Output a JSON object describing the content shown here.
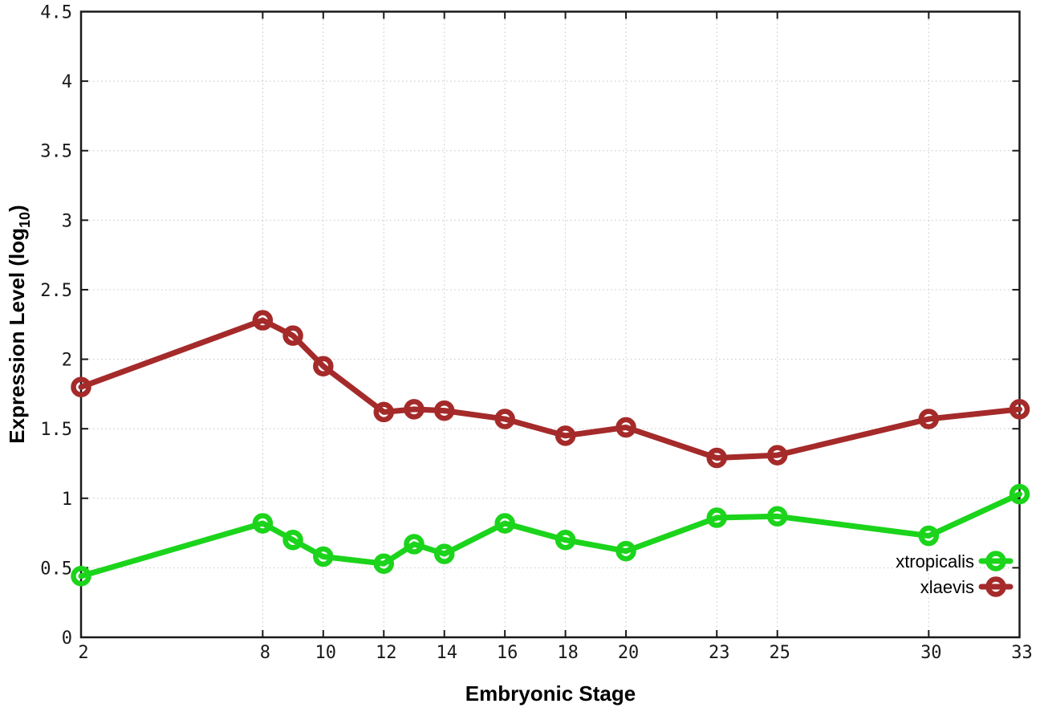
{
  "chart_data": {
    "type": "line",
    "title": "",
    "xlabel": "Embryonic Stage",
    "ylabel": "Expression Level (log10)",
    "ylabel_parts": {
      "main": "Expression Level (log",
      "sub": "10",
      "end": ")"
    },
    "xlim": [
      2,
      33
    ],
    "ylim": [
      0,
      4.5
    ],
    "grid": true,
    "legend_position": "inside-right-bottom",
    "x_ticks": [
      2,
      8,
      10,
      12,
      14,
      16,
      18,
      20,
      23,
      25,
      30,
      33
    ],
    "y_ticks": [
      "0",
      "0.5",
      "1",
      "1.5",
      "2",
      "2.5",
      "3",
      "3.5",
      "4",
      "4.5"
    ],
    "x": [
      2,
      8,
      9,
      10,
      12,
      13,
      14,
      16,
      18,
      20,
      23,
      25,
      30,
      33
    ],
    "series": [
      {
        "name": "xtropicalis",
        "color": "#1bd41b",
        "marker": "open-circle",
        "values": [
          0.44,
          0.82,
          0.7,
          0.58,
          0.53,
          0.67,
          0.6,
          0.82,
          0.7,
          0.62,
          0.86,
          0.87,
          0.73,
          1.03
        ]
      },
      {
        "name": "xlaevis",
        "color": "#a52a2a",
        "marker": "open-circle",
        "values": [
          1.8,
          2.28,
          2.17,
          1.95,
          1.62,
          1.64,
          1.63,
          1.57,
          1.45,
          1.51,
          1.29,
          1.31,
          1.57,
          1.64
        ]
      }
    ],
    "colors": {
      "axis": "#1a1a1a",
      "grid": "#c4c4c4",
      "tick_text": "#1a1a1a",
      "title_text": "#000000",
      "background": "#ffffff"
    }
  }
}
